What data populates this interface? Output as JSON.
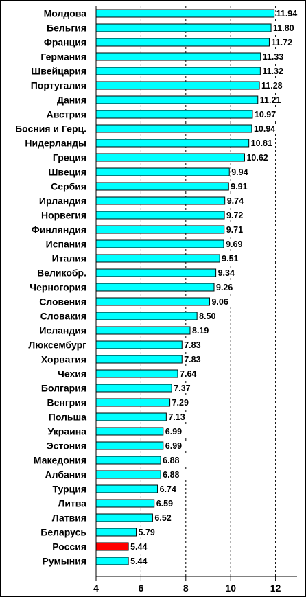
{
  "chart_data": {
    "type": "bar",
    "orientation": "horizontal",
    "title": "",
    "xlabel": "",
    "ylabel": "",
    "xlim": [
      4,
      13
    ],
    "xticks": [
      4,
      6,
      8,
      10,
      12
    ],
    "grid": "vertical dashed at 6, 8, 10, 12",
    "legend": "none",
    "bar_color": "#00ffff",
    "highlight_color": "#ff0000",
    "highlight_category": "Россия",
    "categories": [
      "Молдова",
      "Бельгия",
      "Франция",
      "Германия",
      "Швейцария",
      "Португалия",
      "Дания",
      "Австрия",
      "Босния и Герц.",
      "Нидерланды",
      "Греция",
      "Швеция",
      "Сербия",
      "Ирландия",
      "Норвегия",
      "Финляндия",
      "Испания",
      "Италия",
      "Великобр.",
      "Черногория",
      "Словения",
      "Словакия",
      "Исландия",
      "Люксембург",
      "Хорватия",
      "Чехия",
      "Болгария",
      "Венгрия",
      "Польша",
      "Украина",
      "Эстония",
      "Македония",
      "Албания",
      "Турция",
      "Литва",
      "Латвия",
      "Беларусь",
      "Россия",
      "Румыния"
    ],
    "values": [
      11.94,
      11.8,
      11.72,
      11.33,
      11.32,
      11.28,
      11.21,
      10.97,
      10.94,
      10.81,
      10.62,
      9.94,
      9.91,
      9.74,
      9.72,
      9.71,
      9.69,
      9.51,
      9.34,
      9.26,
      9.06,
      8.5,
      8.19,
      7.83,
      7.83,
      7.64,
      7.37,
      7.29,
      7.13,
      6.99,
      6.99,
      6.88,
      6.88,
      6.74,
      6.59,
      6.52,
      5.79,
      5.44,
      5.44
    ],
    "value_labels": [
      "11.94",
      "11.80",
      "11.72",
      "11.33",
      "11.32",
      "11.28",
      "11.21",
      "10.97",
      "10.94",
      "10.81",
      "10.62",
      "9.94",
      "9.91",
      "9.74",
      "9.72",
      "9.71",
      "9.69",
      "9.51",
      "9.34",
      "9.26",
      "9.06",
      "8.50",
      "8.19",
      "7.83",
      "7.83",
      "7.64",
      "7.37",
      "7.29",
      "7.13",
      "6.99",
      "6.99",
      "6.88",
      "6.88",
      "6.74",
      "6.59",
      "6.52",
      "5.79",
      "5.44",
      "5.44"
    ]
  }
}
